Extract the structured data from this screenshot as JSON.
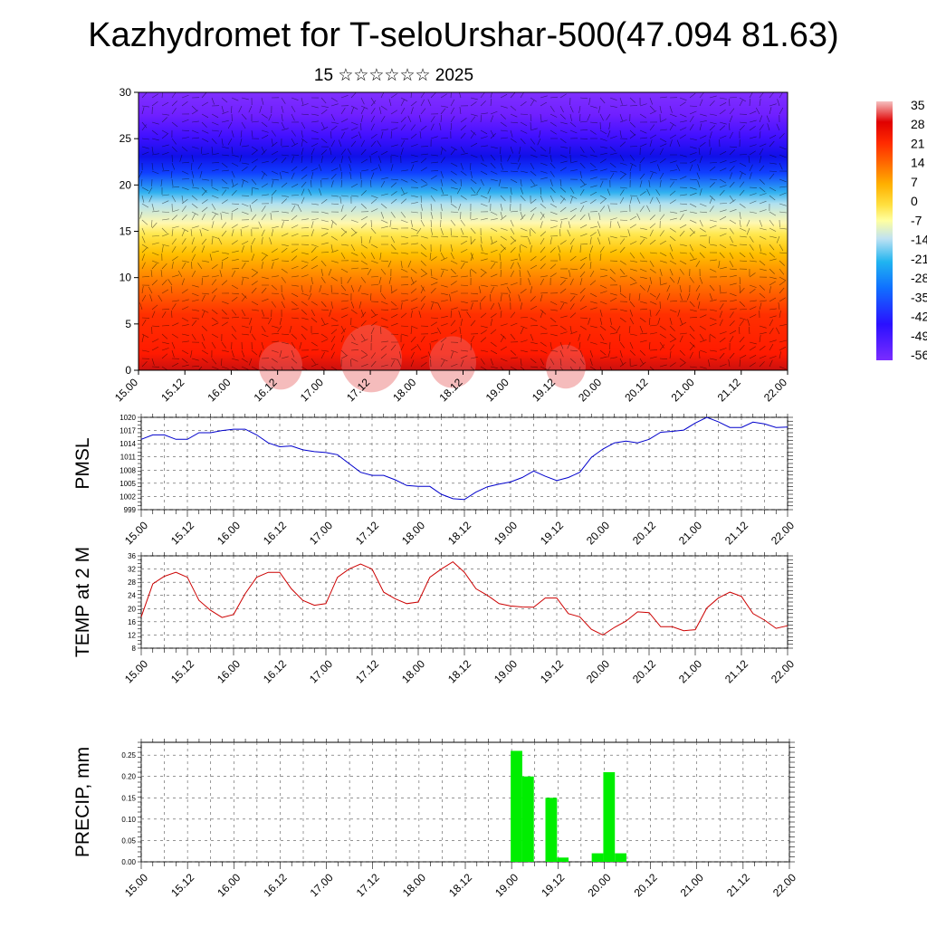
{
  "header": {
    "title": "Kazhydromet for T-seloUrshar-500(47.094 81.63)",
    "subtitle": "15 ☆☆☆☆☆☆ 2025"
  },
  "chart_data": [
    {
      "type": "heatmap",
      "ylim": [
        0,
        30
      ],
      "yticks": [
        "0",
        "5",
        "10",
        "15",
        "20",
        "25",
        "30"
      ],
      "xticks": [
        "15.00",
        "15.12",
        "16.00",
        "16.12",
        "17.00",
        "17.12",
        "18.00",
        "18.12",
        "19.00",
        "19.12",
        "20.00",
        "20.12",
        "21.00",
        "21.12",
        "22.00"
      ],
      "colorbar_labels": [
        "35",
        "28",
        "21",
        "14",
        "7",
        "0",
        "-7",
        "-14",
        "-21",
        "-28",
        "-35",
        "-42",
        "-49",
        "-56"
      ],
      "colors": [
        "#f5c0c0",
        "#e00000",
        "#ff3000",
        "#ff7000",
        "#ffb000",
        "#ffe040",
        "#ffffa0",
        "#a0d8f0",
        "#20a8f0",
        "#1050ff",
        "#2010ff",
        "#6010ff",
        "#8030ff"
      ],
      "overlay": "wind streamlines"
    },
    {
      "type": "line",
      "ylabel": "PMSL",
      "ylim": [
        999,
        1020
      ],
      "yticks": [
        "999",
        "1002",
        "1005",
        "1008",
        "1011",
        "1014",
        "1017",
        "1020"
      ],
      "xticks": [
        "15.00",
        "15.12",
        "16.00",
        "16.12",
        "17.00",
        "17.12",
        "18.00",
        "18.12",
        "19.00",
        "19.12",
        "20.00",
        "20.12",
        "21.00",
        "21.12",
        "22.00"
      ],
      "x": [
        0,
        3,
        6,
        9,
        12,
        15,
        18,
        21,
        24,
        27,
        30,
        33,
        36,
        39,
        42,
        45,
        48,
        51,
        54,
        57,
        60,
        63,
        66,
        69,
        72,
        75,
        78,
        81,
        84,
        87,
        90,
        93,
        96,
        99,
        102,
        105,
        108,
        111,
        114,
        117,
        120,
        123,
        126,
        129,
        132,
        135,
        138,
        141,
        144,
        147,
        150,
        153,
        156,
        159,
        162,
        165,
        168
      ],
      "values": [
        1015,
        1016,
        1016,
        1015,
        1015,
        1016.5,
        1016.5,
        1017,
        1017.3,
        1017.3,
        1016,
        1014.2,
        1013.3,
        1013.5,
        1012.6,
        1012.2,
        1012,
        1011.5,
        1009.5,
        1007.5,
        1006.8,
        1006.8,
        1005.8,
        1004.5,
        1004.3,
        1004.3,
        1002.5,
        1001.5,
        1001.3,
        1003,
        1004.2,
        1004.8,
        1005.3,
        1006.3,
        1007.8,
        1006.6,
        1005.6,
        1006.3,
        1007.5,
        1010.9,
        1012.8,
        1014.2,
        1014.6,
        1014.2,
        1015,
        1016.6,
        1016.8,
        1017.1,
        1018.7,
        1020,
        1019,
        1017.7,
        1017.7,
        1018.9,
        1018.5,
        1017.7,
        1017.8
      ],
      "color": "#0000cc"
    },
    {
      "type": "line",
      "ylabel": "TEMP at 2 M",
      "ylim": [
        8,
        36
      ],
      "yticks": [
        "8",
        "12",
        "16",
        "20",
        "24",
        "28",
        "32",
        "36"
      ],
      "xticks": [
        "15.00",
        "15.12",
        "16.00",
        "16.12",
        "17.00",
        "17.12",
        "18.00",
        "18.12",
        "19.00",
        "19.12",
        "20.00",
        "20.12",
        "21.00",
        "21.12",
        "22.00"
      ],
      "x": [
        0,
        3,
        6,
        9,
        12,
        15,
        18,
        21,
        24,
        27,
        30,
        33,
        36,
        39,
        42,
        45,
        48,
        51,
        54,
        57,
        60,
        63,
        66,
        69,
        72,
        75,
        78,
        81,
        84,
        87,
        90,
        93,
        96,
        99,
        102,
        105,
        108,
        111,
        114,
        117,
        120,
        123,
        126,
        129,
        132,
        135,
        138,
        141,
        144,
        147,
        150,
        153,
        156,
        159,
        162,
        165,
        168
      ],
      "values": [
        17.5,
        27.5,
        29.8,
        31,
        29.5,
        22.5,
        19.5,
        17.3,
        18.2,
        24.5,
        29.5,
        31,
        31,
        26,
        22.5,
        21,
        21.5,
        29.5,
        32,
        33.5,
        32,
        25,
        23,
        21.5,
        22,
        29.5,
        32,
        34.2,
        31,
        26,
        24,
        21.5,
        20.8,
        20.5,
        20.4,
        23.2,
        23.2,
        18.5,
        17.5,
        13.7,
        12,
        14.3,
        16.2,
        19,
        18.8,
        14.5,
        14.5,
        13.3,
        13.6,
        20.2,
        23.2,
        25,
        23.7,
        18.5,
        16.5,
        14,
        14.8
      ],
      "color": "#cc0000"
    },
    {
      "type": "bar",
      "ylabel": "PRECIP, mm",
      "ylim": [
        0,
        0.28
      ],
      "yticks": [
        "0.00",
        "0.05",
        "0.10",
        "0.15",
        "0.20",
        "0.25"
      ],
      "xticks": [
        "15.00",
        "15.12",
        "16.00",
        "16.12",
        "17.00",
        "17.12",
        "18.00",
        "18.12",
        "19.00",
        "19.12",
        "20.00",
        "20.12",
        "21.00",
        "21.12",
        "22.00"
      ],
      "bars": [
        {
          "x": 96,
          "value": 0.26
        },
        {
          "x": 99,
          "value": 0.2
        },
        {
          "x": 105,
          "value": 0.15
        },
        {
          "x": 108,
          "value": 0.01
        },
        {
          "x": 117,
          "value": 0.02
        },
        {
          "x": 120,
          "value": 0.21
        },
        {
          "x": 123,
          "value": 0.02
        }
      ],
      "color": "#00ee00"
    }
  ]
}
